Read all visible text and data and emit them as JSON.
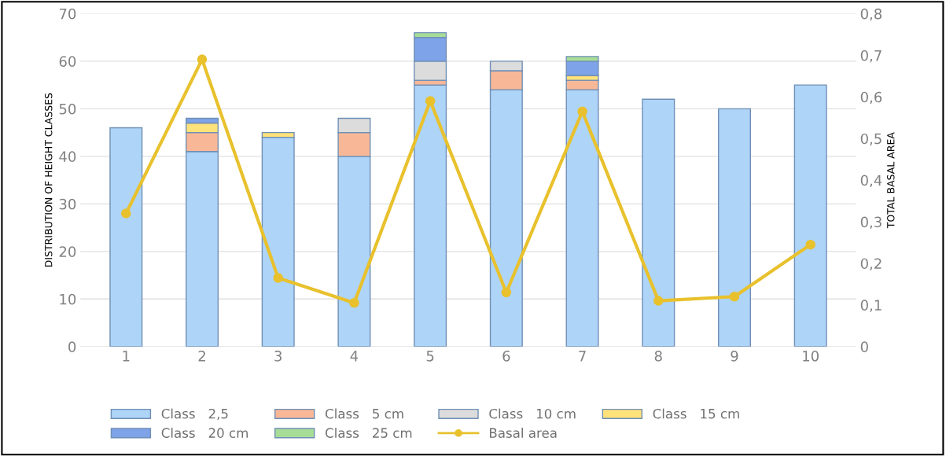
{
  "chart_data": {
    "type": "bar",
    "stacked": true,
    "ylabel": "DISTRIBUTION OF HEIGHT CLASSES",
    "y2label": "TOTAL BASAL AREA",
    "categories": [
      "1",
      "2",
      "3",
      "4",
      "5",
      "6",
      "7",
      "8",
      "9",
      "10"
    ],
    "series": [
      {
        "name": "Class   2,5",
        "color": "#aed4f8",
        "values": [
          46,
          41,
          44,
          40,
          55,
          54,
          54,
          52,
          50,
          55
        ]
      },
      {
        "name": "Class   5 cm",
        "color": "#f8b898",
        "values": [
          null,
          4,
          null,
          5,
          1,
          4,
          2,
          null,
          null,
          null
        ]
      },
      {
        "name": "Class   10 cm",
        "color": "#dcdcdc",
        "values": [
          null,
          null,
          null,
          3,
          4,
          2,
          null,
          null,
          null,
          null
        ]
      },
      {
        "name": "Class   15 cm",
        "color": "#ffe27a",
        "values": [
          null,
          2,
          1,
          null,
          null,
          null,
          1,
          null,
          null,
          null
        ]
      },
      {
        "name": "Class   20 cm",
        "color": "#7fa3e8",
        "values": [
          null,
          1,
          null,
          null,
          5,
          null,
          3,
          null,
          null,
          null
        ]
      },
      {
        "name": "Class   25 cm",
        "color": "#a8dd98",
        "values": [
          null,
          null,
          null,
          null,
          1,
          null,
          1,
          null,
          null,
          null
        ]
      },
      {
        "name": "Basal area",
        "type": "line",
        "axis": "y2",
        "color": "#e8c12d",
        "marker": "circle",
        "values": [
          0.32,
          0.69,
          0.165,
          0.105,
          0.59,
          0.13,
          0.565,
          0.11,
          0.12,
          0.245
        ]
      }
    ],
    "ylim": [
      0,
      70
    ],
    "yticks": [
      0,
      10,
      20,
      30,
      40,
      50,
      60,
      70
    ],
    "y2lim": [
      0,
      0.8
    ],
    "y2ticks": [
      {
        "value": 0,
        "label": "0"
      },
      {
        "value": 0.1,
        "label": "0,1"
      },
      {
        "value": 0.2,
        "label": "0,2"
      },
      {
        "value": 0.3,
        "label": "0,3"
      },
      {
        "value": 0.4,
        "label": "0,4"
      },
      {
        "value": 0.5,
        "label": "0,5"
      },
      {
        "value": 0.6,
        "label": "0,6"
      },
      {
        "value": 0.7,
        "label": "0,7"
      },
      {
        "value": 0.8,
        "label": "0,8"
      }
    ],
    "grid": "y",
    "legend": "bottom"
  }
}
